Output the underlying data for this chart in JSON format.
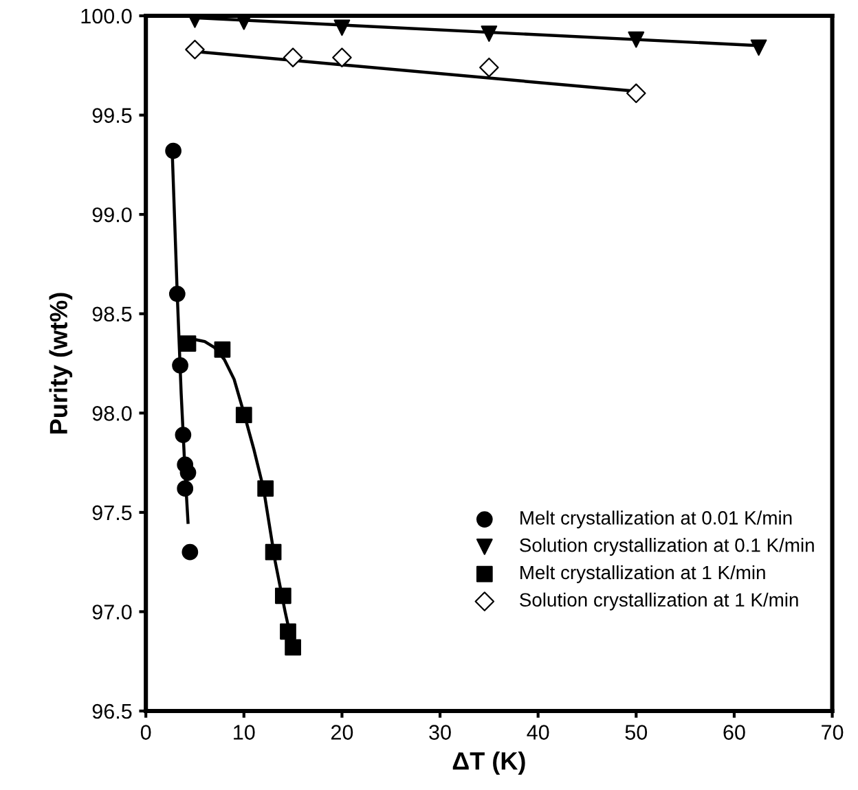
{
  "chart_data": {
    "type": "scatter",
    "xlabel": "ΔT (K)",
    "ylabel": "Purity (wt%)",
    "xlim": [
      0,
      70
    ],
    "xticks": [
      0,
      10,
      20,
      30,
      40,
      50,
      60,
      70
    ],
    "ylim": [
      96.5,
      100.0
    ],
    "yticks": [
      {
        "value": 96.5,
        "label": "96.5"
      },
      {
        "value": 97.0,
        "label": "97.0"
      },
      {
        "value": 97.5,
        "label": "97.5"
      },
      {
        "value": 98.0,
        "label": "98.0"
      },
      {
        "value": 98.5,
        "label": "98.5"
      },
      {
        "value": 99.0,
        "label": "99.0"
      },
      {
        "value": 99.5,
        "label": "99.5"
      },
      {
        "value": 100.0,
        "label": "100.0"
      }
    ],
    "grid": false,
    "legend": "bottom right",
    "series": [
      {
        "type": "line",
        "color": "#000000",
        "marker": "none",
        "line_style": "solid",
        "x": [
          2.7,
          3.2,
          3.6,
          4.0,
          4.3
        ],
        "values": [
          99.3,
          98.6,
          98.1,
          97.7,
          97.45
        ]
      },
      {
        "type": "line",
        "color": "#000000",
        "marker": "none",
        "line_style": "solid",
        "x": [
          4.3,
          5,
          6,
          7,
          8,
          9,
          10,
          11,
          12,
          13.2,
          14.2,
          15
        ],
        "values": [
          98.37,
          98.37,
          98.36,
          98.33,
          98.27,
          98.17,
          98.0,
          97.82,
          97.62,
          97.25,
          97.0,
          96.82
        ]
      },
      {
        "type": "line",
        "color": "#000000",
        "marker": "none",
        "line_style": "solid",
        "x": [
          5,
          62.5
        ],
        "values": [
          99.99,
          99.85
        ]
      },
      {
        "type": "line",
        "color": "#000000",
        "marker": "none",
        "line_style": "solid",
        "x": [
          5,
          50
        ],
        "values": [
          99.82,
          99.62
        ]
      },
      {
        "name": "Melt crystallization at 0.01 K/min",
        "color": "#000000",
        "marker": "circle",
        "x": [
          2.8,
          3.2,
          3.5,
          3.8,
          4.0,
          4.3,
          4.0,
          4.5
        ],
        "values": [
          99.32,
          98.6,
          98.24,
          97.89,
          97.74,
          97.7,
          97.62,
          97.3
        ]
      },
      {
        "name": "Solution crystallization at 0.1 K/min",
        "color": "#000000",
        "marker": "triangle",
        "x": [
          5,
          10,
          20,
          35,
          50,
          62.5
        ],
        "values": [
          99.98,
          99.97,
          99.94,
          99.91,
          99.88,
          99.84
        ]
      },
      {
        "name": "Melt crystallization at 1 K/min",
        "color": "#000000",
        "marker": "square",
        "x": [
          4.3,
          7.8,
          10,
          12.2,
          13,
          14,
          14.5,
          15
        ],
        "values": [
          98.35,
          98.32,
          97.99,
          97.62,
          97.3,
          97.08,
          96.9,
          96.82
        ]
      },
      {
        "name": "Solution crystallization at 1 K/min",
        "color": "#ffffff",
        "marker": "diamond",
        "x": [
          5,
          15,
          20,
          35,
          50
        ],
        "values": [
          99.83,
          99.79,
          99.79,
          99.74,
          99.61
        ]
      }
    ]
  }
}
